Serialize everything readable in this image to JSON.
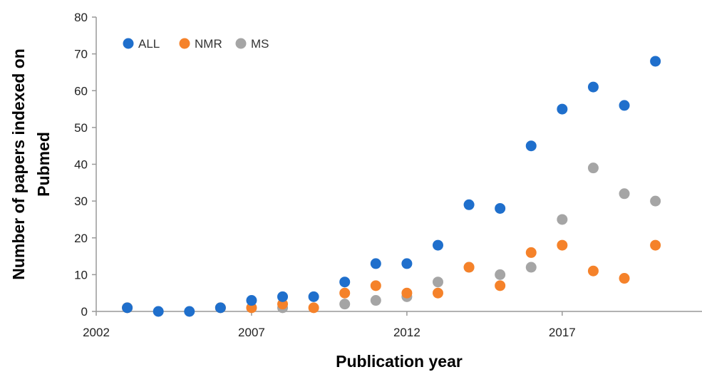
{
  "chart_data": {
    "type": "scatter",
    "title": "",
    "xlabel": "Publication year",
    "ylabel_lines": [
      "Number of papers indexed on",
      "Pubmed"
    ],
    "xlim": [
      2002,
      2021.5
    ],
    "ylim": [
      0,
      80
    ],
    "xticks": [
      2002,
      2007,
      2012,
      2017
    ],
    "yticks": [
      0,
      10,
      20,
      30,
      40,
      50,
      60,
      70,
      80
    ],
    "grid": false,
    "legend_position": "top-left",
    "series": [
      {
        "name": "ALL",
        "color": "#1f6fcc",
        "points": [
          {
            "x": 2003,
            "y": 1
          },
          {
            "x": 2004,
            "y": 0
          },
          {
            "x": 2005,
            "y": 0
          },
          {
            "x": 2006,
            "y": 1
          },
          {
            "x": 2007,
            "y": 3
          },
          {
            "x": 2008,
            "y": 4
          },
          {
            "x": 2009,
            "y": 4
          },
          {
            "x": 2010,
            "y": 8
          },
          {
            "x": 2011,
            "y": 13
          },
          {
            "x": 2012,
            "y": 13
          },
          {
            "x": 2013,
            "y": 18
          },
          {
            "x": 2014,
            "y": 29
          },
          {
            "x": 2015,
            "y": 28
          },
          {
            "x": 2016,
            "y": 45
          },
          {
            "x": 2017,
            "y": 55
          },
          {
            "x": 2018,
            "y": 61
          },
          {
            "x": 2019,
            "y": 56
          },
          {
            "x": 2020,
            "y": 68
          }
        ]
      },
      {
        "name": "NMR",
        "color": "#f5822a",
        "points": [
          {
            "x": 2003,
            "y": 1
          },
          {
            "x": 2006,
            "y": 1
          },
          {
            "x": 2007,
            "y": 1
          },
          {
            "x": 2008,
            "y": 2
          },
          {
            "x": 2009,
            "y": 1
          },
          {
            "x": 2010,
            "y": 5
          },
          {
            "x": 2011,
            "y": 7
          },
          {
            "x": 2012,
            "y": 5
          },
          {
            "x": 2013,
            "y": 5
          },
          {
            "x": 2014,
            "y": 12
          },
          {
            "x": 2015,
            "y": 7
          },
          {
            "x": 2016,
            "y": 16
          },
          {
            "x": 2017,
            "y": 18
          },
          {
            "x": 2018,
            "y": 11
          },
          {
            "x": 2019,
            "y": 9
          },
          {
            "x": 2020,
            "y": 18
          }
        ]
      },
      {
        "name": "MS",
        "color": "#a5a5a5",
        "points": [
          {
            "x": 2008,
            "y": 1
          },
          {
            "x": 2010,
            "y": 2
          },
          {
            "x": 2011,
            "y": 3
          },
          {
            "x": 2012,
            "y": 4
          },
          {
            "x": 2013,
            "y": 8
          },
          {
            "x": 2014,
            "y": 12
          },
          {
            "x": 2015,
            "y": 10
          },
          {
            "x": 2016,
            "y": 12
          },
          {
            "x": 2017,
            "y": 25
          },
          {
            "x": 2018,
            "y": 39
          },
          {
            "x": 2019,
            "y": 32
          },
          {
            "x": 2020,
            "y": 30
          }
        ]
      }
    ]
  }
}
